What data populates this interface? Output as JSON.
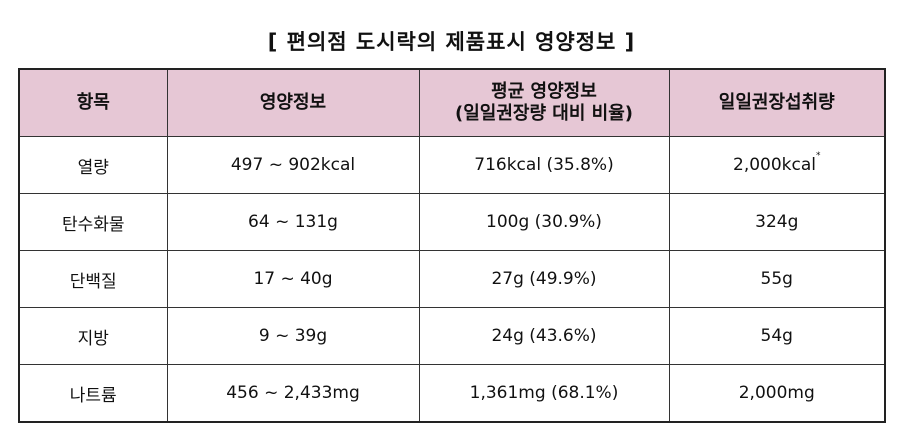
{
  "title": "[ 편의점 도시락의 제품표시 영양정보 ]",
  "table": {
    "header": [
      [
        "항목"
      ],
      [
        "영양정보"
      ],
      [
        "평균 영양정보",
        "(일일권장량 대비 비율)"
      ],
      [
        "일일권장섭취량"
      ]
    ],
    "rows": [
      [
        [
          "열량"
        ],
        [
          "497 ~ 902kcal"
        ],
        [
          "716kcal (35.8%)"
        ],
        [
          "2,000kcal",
          "*"
        ]
      ],
      [
        [
          "탄수화물"
        ],
        [
          "64 ~ 131g"
        ],
        [
          "100g (30.9%)"
        ],
        [
          "324g"
        ]
      ],
      [
        [
          "단백질"
        ],
        [
          "17 ~ 40g"
        ],
        [
          "27g (49.9%)"
        ],
        [
          "55g"
        ]
      ],
      [
        [
          "지방"
        ],
        [
          "9 ~ 39g"
        ],
        [
          "24g (43.6%)"
        ],
        [
          "54g"
        ]
      ],
      [
        [
          "나트륨"
        ],
        [
          "456 ~ 2,433mg"
        ],
        [
          "1,361mg (68.1%)"
        ],
        [
          "2,000mg"
        ]
      ]
    ]
  }
}
